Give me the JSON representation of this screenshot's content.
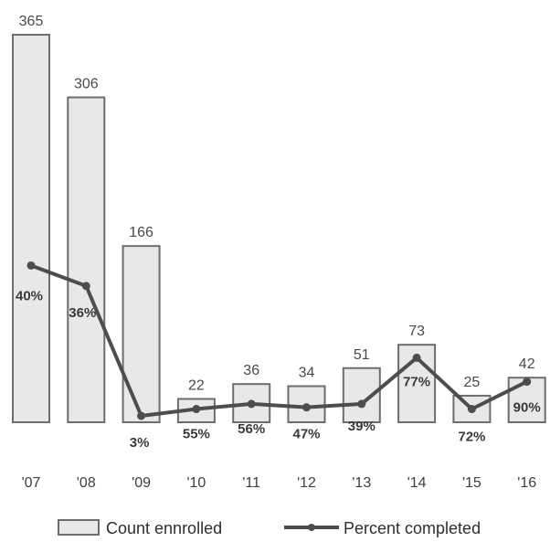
{
  "chart_data": {
    "type": "bar",
    "categories": [
      "'07",
      "'08",
      "'09",
      "'10",
      "'11",
      "'12",
      "'13",
      "'14",
      "'15",
      "'16"
    ],
    "series": [
      {
        "name": "Count ennrolled",
        "type": "bar",
        "values": [
          365,
          306,
          166,
          22,
          36,
          34,
          51,
          73,
          25,
          42
        ]
      },
      {
        "name": "Percent completed",
        "type": "line",
        "values": [
          40,
          36,
          3,
          55,
          56,
          47,
          39,
          77,
          72,
          90
        ],
        "labels": [
          "40%",
          "36%",
          "3%",
          "55%",
          "56%",
          "47%",
          "39%",
          "77%",
          "72%",
          "90%"
        ],
        "positions": [
          0.88,
          0.76,
          0.0,
          0.04,
          0.07,
          0.05,
          0.07,
          0.34,
          0.04,
          0.2
        ]
      }
    ],
    "legend": {
      "placement": "bottom",
      "entries": [
        "Count ennrolled",
        "Percent completed"
      ]
    },
    "ylim": [
      0,
      365
    ],
    "grid": false
  }
}
